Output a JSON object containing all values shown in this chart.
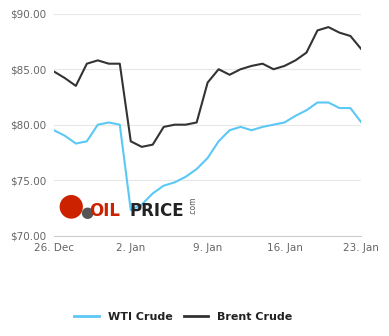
{
  "wti_x": [
    0,
    1,
    2,
    3,
    4,
    5,
    6,
    7,
    8,
    9,
    10,
    11,
    12,
    13,
    14,
    15,
    16,
    17,
    18,
    19,
    20,
    21,
    22,
    23,
    24,
    25,
    26,
    27,
    28
  ],
  "wti_y": [
    79.5,
    79.0,
    78.3,
    78.5,
    80.0,
    80.2,
    80.0,
    72.3,
    72.8,
    73.8,
    74.5,
    74.8,
    75.3,
    76.0,
    77.0,
    78.5,
    79.5,
    79.8,
    79.5,
    79.8,
    80.0,
    80.2,
    80.8,
    81.3,
    82.0,
    82.0,
    81.5,
    81.5,
    80.2
  ],
  "brent_x": [
    0,
    1,
    2,
    3,
    4,
    5,
    6,
    7,
    8,
    9,
    10,
    11,
    12,
    13,
    14,
    15,
    16,
    17,
    18,
    19,
    20,
    21,
    22,
    23,
    24,
    25,
    26,
    27,
    28
  ],
  "brent_y": [
    84.8,
    84.2,
    83.5,
    85.5,
    85.8,
    85.5,
    85.5,
    78.5,
    78.0,
    78.2,
    79.8,
    80.0,
    80.0,
    80.2,
    83.8,
    85.0,
    84.5,
    85.0,
    85.3,
    85.5,
    85.0,
    85.3,
    85.8,
    86.5,
    88.5,
    88.8,
    88.3,
    88.0,
    86.8
  ],
  "wti_color": "#5bc8f5",
  "brent_color": "#333333",
  "bg_color": "#ffffff",
  "grid_color": "#e8e8e8",
  "ylim": [
    70.0,
    90.0
  ],
  "yticks": [
    70.0,
    75.0,
    80.0,
    85.0,
    90.0
  ],
  "xtick_positions": [
    0,
    7,
    14,
    21,
    28
  ],
  "xtick_labels": [
    "26. Dec",
    "2. Jan",
    "9. Jan",
    "16. Jan",
    "23. Jan"
  ],
  "wti_label": "WTI Crude",
  "brent_label": "Brent Crude",
  "linewidth": 1.5,
  "tick_fontsize": 7.5,
  "tick_color": "#666666"
}
